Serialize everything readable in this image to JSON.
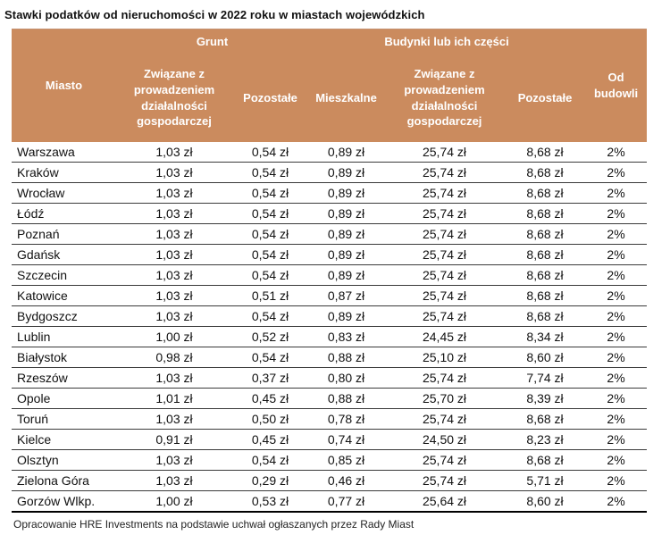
{
  "title": "Stawki podatków od nieruchomości w 2022 roku w miastach wojewódzkich",
  "footer": "Opracowanie HRE Investments na podstawie uchwał ogłaszanych przez Rady Miast",
  "colors": {
    "header_bg": "#cb8b5e",
    "header_text": "#ffffff",
    "row_line": "#3a3a3a",
    "bottom_line": "#000000"
  },
  "chart_data": {
    "type": "table",
    "title": "Stawki podatków od nieruchomości w 2022 roku w miastach wojewódzkich",
    "column_groups": [
      {
        "label": "Grunt",
        "spans_columns": [
          1,
          2
        ]
      },
      {
        "label": "Budynki lub ich części",
        "spans_columns": [
          3,
          4,
          5
        ]
      }
    ],
    "columns": [
      "Miasto",
      "Związane z prowadzeniem działalności gospodarczej",
      "Pozostałe",
      "Mieszkalne",
      "Związane z prowadzeniem działalności gospodarczej",
      "Pozostałe",
      "Od budowli"
    ],
    "rows": [
      [
        "Warszawa",
        "1,03 zł",
        "0,54 zł",
        "0,89 zł",
        "25,74 zł",
        "8,68 zł",
        "2%"
      ],
      [
        "Kraków",
        "1,03 zł",
        "0,54 zł",
        "0,89 zł",
        "25,74 zł",
        "8,68 zł",
        "2%"
      ],
      [
        "Wrocław",
        "1,03 zł",
        "0,54 zł",
        "0,89 zł",
        "25,74 zł",
        "8,68 zł",
        "2%"
      ],
      [
        "Łódź",
        "1,03 zł",
        "0,54 zł",
        "0,89 zł",
        "25,74 zł",
        "8,68 zł",
        "2%"
      ],
      [
        "Poznań",
        "1,03 zł",
        "0,54 zł",
        "0,89 zł",
        "25,74 zł",
        "8,68 zł",
        "2%"
      ],
      [
        "Gdańsk",
        "1,03 zł",
        "0,54 zł",
        "0,89 zł",
        "25,74 zł",
        "8,68 zł",
        "2%"
      ],
      [
        "Szczecin",
        "1,03 zł",
        "0,54 zł",
        "0,89 zł",
        "25,74 zł",
        "8,68 zł",
        "2%"
      ],
      [
        "Katowice",
        "1,03 zł",
        "0,51 zł",
        "0,87 zł",
        "25,74 zł",
        "8,68 zł",
        "2%"
      ],
      [
        "Bydgoszcz",
        "1,03 zł",
        "0,54 zł",
        "0,89 zł",
        "25,74 zł",
        "8,68 zł",
        "2%"
      ],
      [
        "Lublin",
        "1,00 zł",
        "0,52 zł",
        "0,83 zł",
        "24,45 zł",
        "8,34 zł",
        "2%"
      ],
      [
        "Białystok",
        "0,98 zł",
        "0,54 zł",
        "0,88 zł",
        "25,10 zł",
        "8,60 zł",
        "2%"
      ],
      [
        "Rzeszów",
        "1,03 zł",
        "0,37 zł",
        "0,80 zł",
        "25,74 zł",
        "7,74 zł",
        "2%"
      ],
      [
        "Opole",
        "1,01 zł",
        "0,45 zł",
        "0,88 zł",
        "25,70 zł",
        "8,39 zł",
        "2%"
      ],
      [
        "Toruń",
        "1,03 zł",
        "0,50 zł",
        "0,78 zł",
        "25,74 zł",
        "8,68 zł",
        "2%"
      ],
      [
        "Kielce",
        "0,91 zł",
        "0,45 zł",
        "0,74 zł",
        "24,50 zł",
        "8,23 zł",
        "2%"
      ],
      [
        "Olsztyn",
        "1,03 zł",
        "0,54 zł",
        "0,85 zł",
        "25,74 zł",
        "8,68 zł",
        "2%"
      ],
      [
        "Zielona Góra",
        "1,03 zł",
        "0,29 zł",
        "0,46 zł",
        "25,74 zł",
        "5,71 zł",
        "2%"
      ],
      [
        "Gorzów Wlkp.",
        "1,00 zł",
        "0,53 zł",
        "0,77 zł",
        "25,64 zł",
        "8,60 zł",
        "2%"
      ]
    ],
    "source": "Opracowanie HRE Investments na podstawie uchwał ogłaszanych przez Rady Miast"
  }
}
